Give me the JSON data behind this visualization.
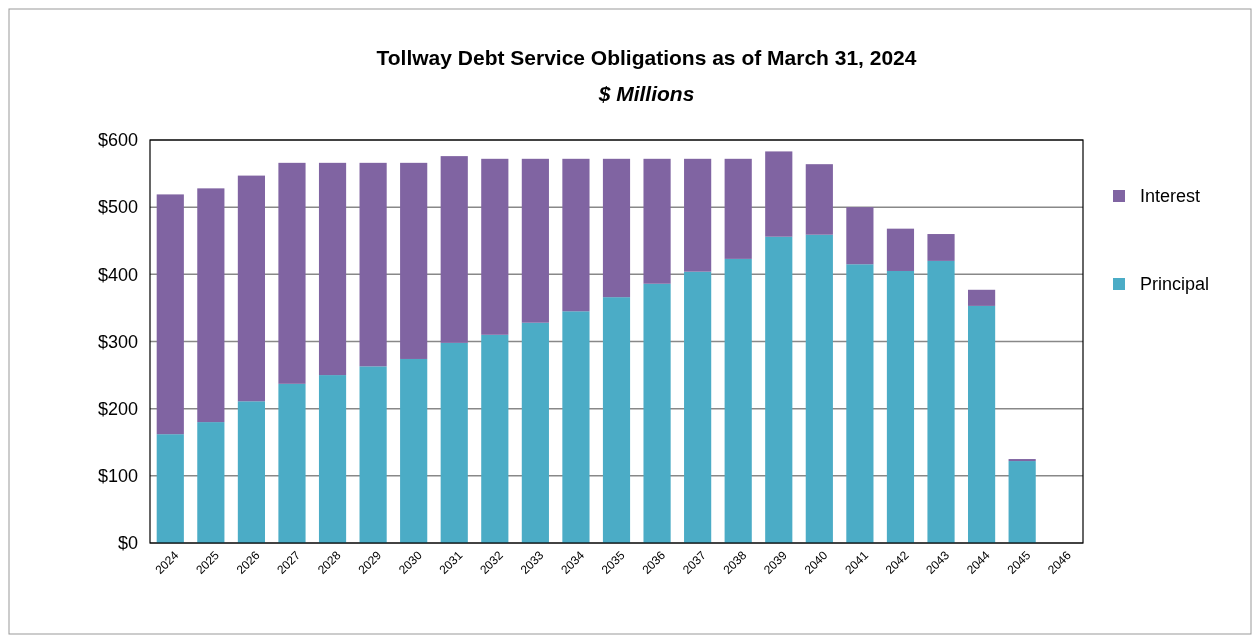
{
  "chart_data": {
    "type": "bar",
    "title": "Tollway Debt Service Obligations as of March 31, 2024",
    "subtitle": "$ Millions",
    "stacked": true,
    "legend": "right",
    "grid": "y",
    "categories": [
      "2024",
      "2025",
      "2026",
      "2027",
      "2028",
      "2029",
      "2030",
      "2031",
      "2032",
      "2033",
      "2034",
      "2035",
      "2036",
      "2037",
      "2038",
      "2039",
      "2040",
      "2041",
      "2042",
      "2043",
      "2044",
      "2045",
      "2046"
    ],
    "series": [
      {
        "name": "Principal",
        "color": "#4bacc6",
        "values": [
          162,
          180,
          211,
          237,
          250,
          263,
          274,
          298,
          310,
          328,
          345,
          366,
          386,
          404,
          423,
          456,
          459,
          415,
          405,
          420,
          353,
          122,
          0
        ]
      },
      {
        "name": "Interest",
        "color": "#8064a2",
        "values": [
          357,
          348,
          336,
          329,
          316,
          303,
          292,
          278,
          262,
          244,
          227,
          206,
          186,
          168,
          149,
          127,
          105,
          85,
          63,
          40,
          24,
          3,
          0
        ]
      }
    ],
    "ylim": [
      0,
      600
    ],
    "yticks": [
      {
        "value": 0,
        "label": "$0"
      },
      {
        "value": 100,
        "label": "$100"
      },
      {
        "value": 200,
        "label": "$200"
      },
      {
        "value": 300,
        "label": "$300"
      },
      {
        "value": 400,
        "label": "$400"
      },
      {
        "value": 500,
        "label": "$500"
      },
      {
        "value": 600,
        "label": "$600"
      }
    ]
  }
}
